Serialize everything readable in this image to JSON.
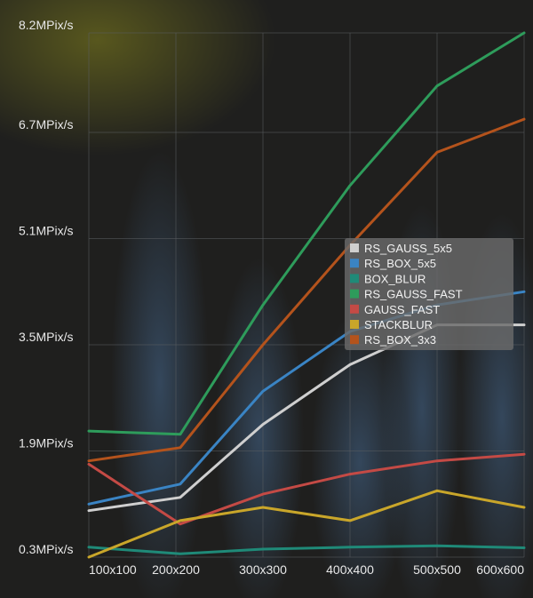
{
  "chart_data": {
    "type": "line",
    "title": "",
    "xlabel": "",
    "ylabel": "",
    "categories": [
      "100x100",
      "200x200",
      "300x300",
      "400x400",
      "500x500",
      "600x600"
    ],
    "y_tick_labels": [
      "0.3MPix/s",
      "1.9MPix/s",
      "3.5MPix/s",
      "5.1MPix/s",
      "6.7MPix/s",
      "8.2MPix/s"
    ],
    "y_ticks": [
      0.3,
      1.9,
      3.5,
      5.1,
      6.7,
      8.2
    ],
    "ylim": [
      0.3,
      8.2
    ],
    "x_tick_positions": [
      100,
      200,
      300,
      400,
      500,
      600
    ],
    "xlim": [
      100,
      600
    ],
    "grid": true,
    "legend_position": "center-right",
    "series": [
      {
        "name": "RS_GAUSS_5x5",
        "color": "#cfcfcf",
        "points": [
          [
            100,
            1.0
          ],
          [
            205,
            1.2
          ],
          [
            300,
            2.3
          ],
          [
            400,
            3.2
          ],
          [
            500,
            3.8
          ],
          [
            600,
            3.8
          ]
        ]
      },
      {
        "name": "RS_BOX_5x5",
        "color": "#3a84c4",
        "points": [
          [
            100,
            1.1
          ],
          [
            205,
            1.4
          ],
          [
            300,
            2.8
          ],
          [
            400,
            3.7
          ],
          [
            500,
            4.1
          ],
          [
            600,
            4.3
          ]
        ]
      },
      {
        "name": "BOX_BLUR",
        "color": "#1f8a78",
        "points": [
          [
            100,
            0.45
          ],
          [
            205,
            0.35
          ],
          [
            300,
            0.42
          ],
          [
            400,
            0.45
          ],
          [
            500,
            0.47
          ],
          [
            600,
            0.44
          ]
        ]
      },
      {
        "name": "RS_GAUSS_FAST",
        "color": "#2e9c5b",
        "points": [
          [
            100,
            2.2
          ],
          [
            205,
            2.15
          ],
          [
            300,
            4.1
          ],
          [
            400,
            5.9
          ],
          [
            500,
            7.4
          ],
          [
            600,
            8.2
          ]
        ]
      },
      {
        "name": "GAUSS_FAST",
        "color": "#c44a45",
        "points": [
          [
            100,
            1.7
          ],
          [
            205,
            0.8
          ],
          [
            300,
            1.25
          ],
          [
            400,
            1.55
          ],
          [
            500,
            1.75
          ],
          [
            600,
            1.85
          ]
        ]
      },
      {
        "name": "STACKBLUR",
        "color": "#c9a62a",
        "points": [
          [
            100,
            0.3
          ],
          [
            205,
            0.85
          ],
          [
            300,
            1.05
          ],
          [
            400,
            0.85
          ],
          [
            500,
            1.3
          ],
          [
            600,
            1.05
          ]
        ]
      },
      {
        "name": "RS_BOX_3x3",
        "color": "#b4531c",
        "points": [
          [
            100,
            1.75
          ],
          [
            205,
            1.95
          ],
          [
            300,
            3.5
          ],
          [
            400,
            5.0
          ],
          [
            500,
            6.4
          ],
          [
            600,
            6.9
          ]
        ]
      }
    ]
  }
}
